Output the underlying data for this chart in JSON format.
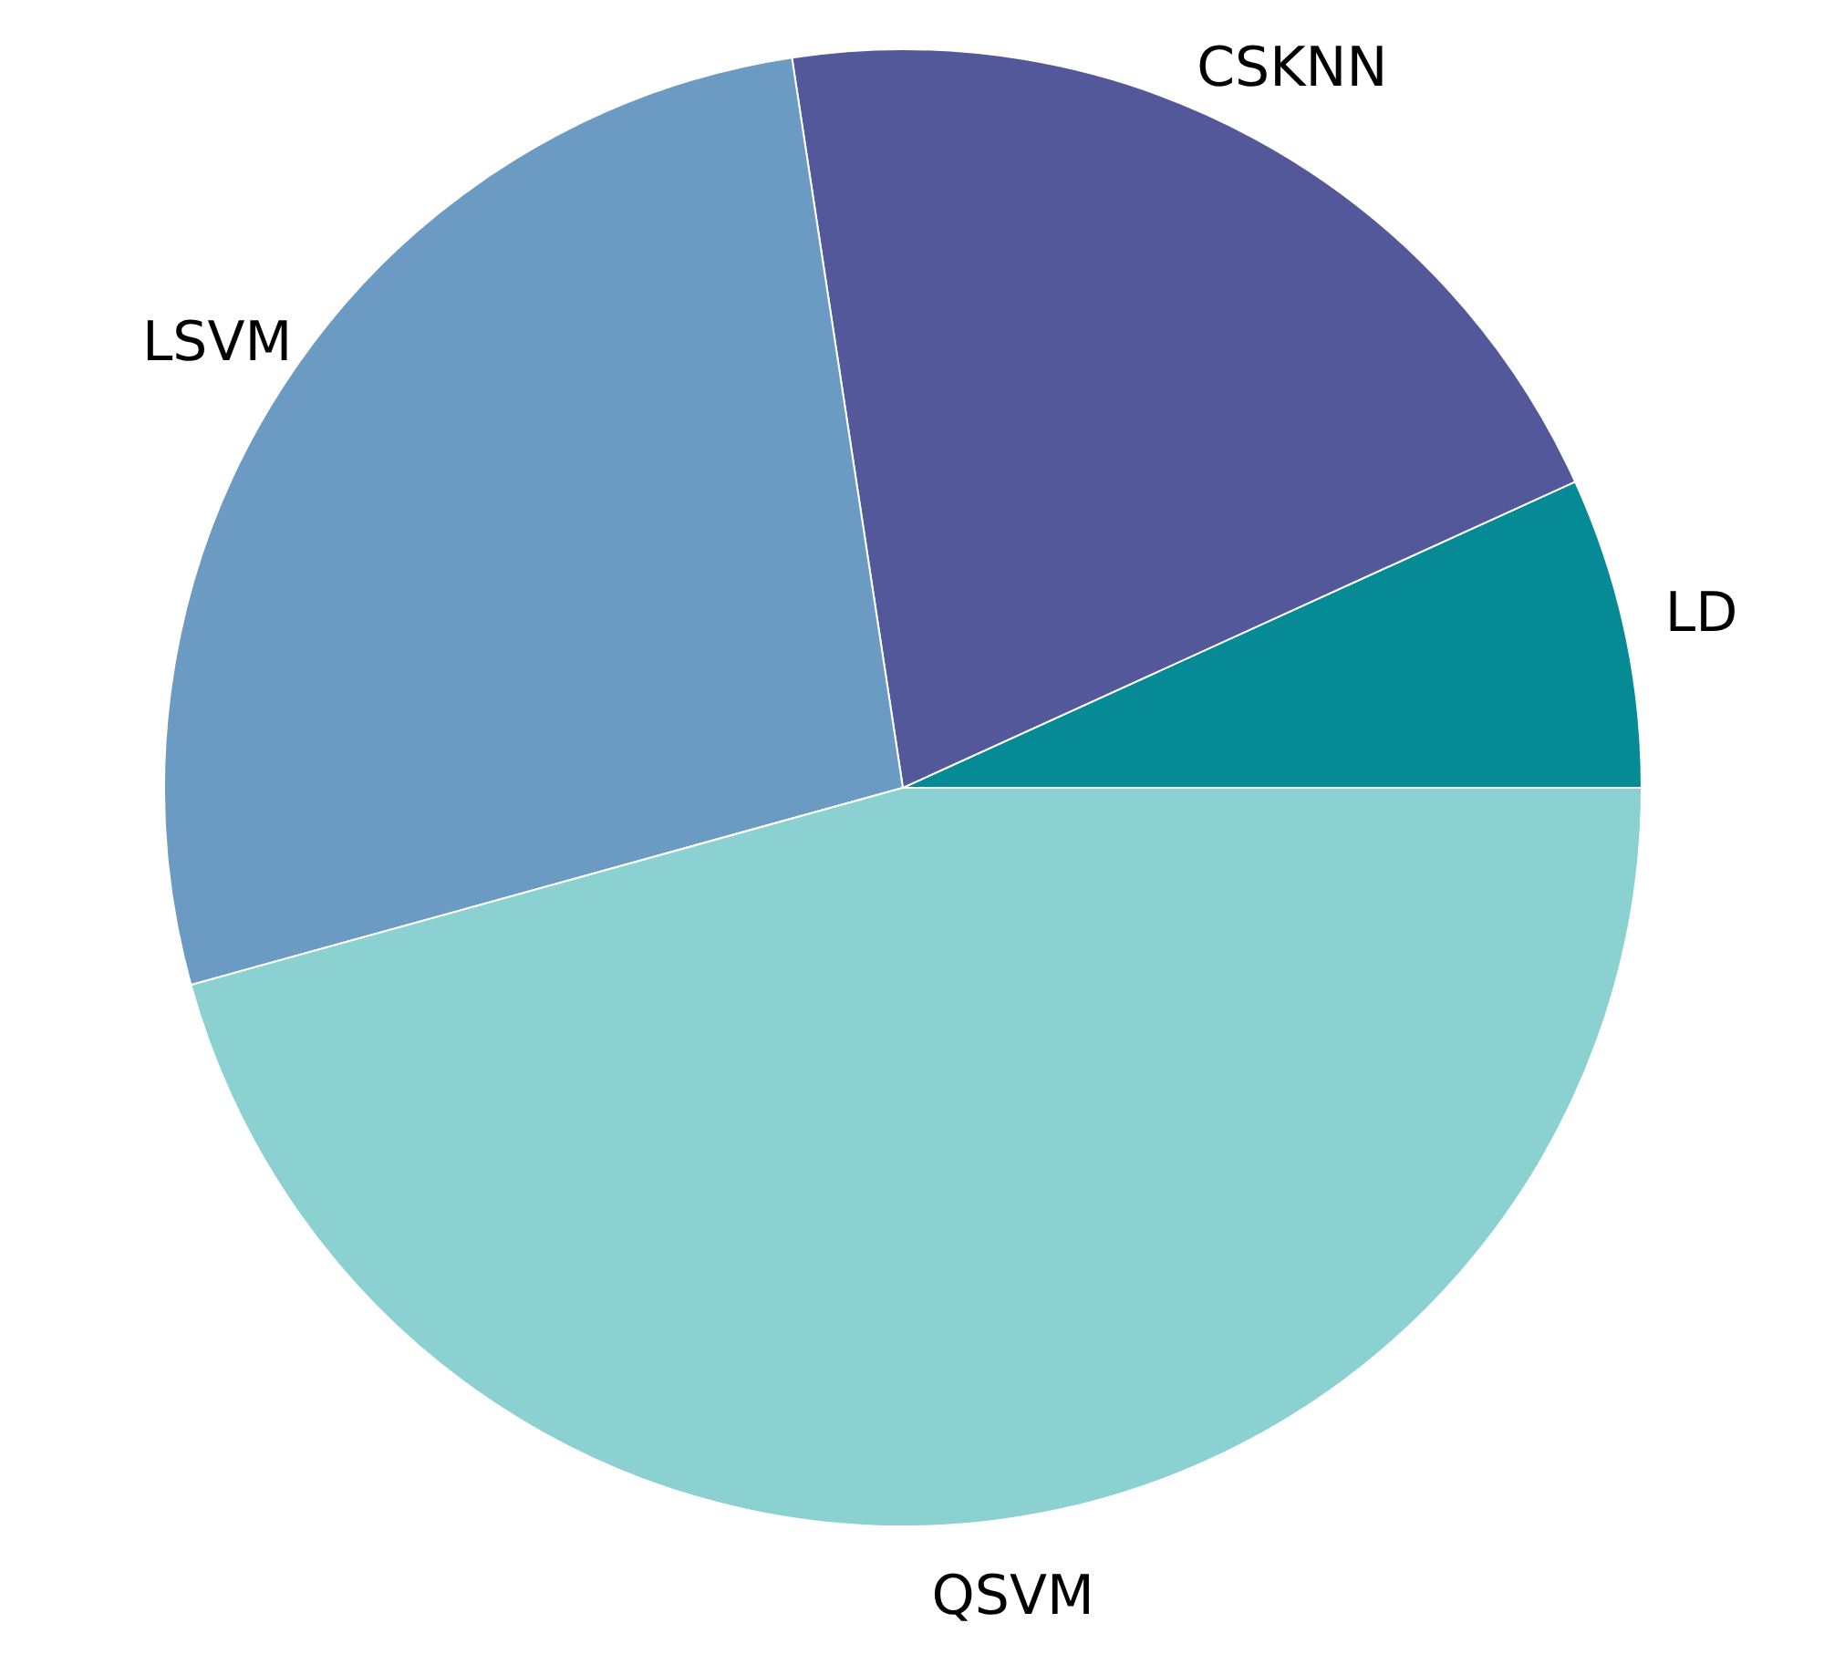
{
  "chart_data": {
    "type": "pie",
    "categories": [
      "LD",
      "CSKNN",
      "LSVM",
      "QSVM"
    ],
    "values": [
      6.8,
      20.6,
      26.9,
      45.7
    ],
    "colors": [
      "#058a96",
      "#525899",
      "#6b9bc3",
      "#8bd1d1"
    ]
  }
}
